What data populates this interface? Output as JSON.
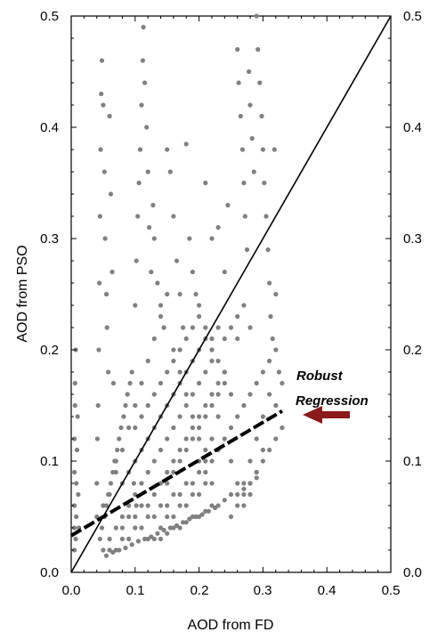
{
  "chart_data": {
    "type": "scatter",
    "xlabel": "AOD from FD",
    "ylabel": "AOD from PSO",
    "xlim": [
      0.0,
      0.5
    ],
    "ylim": [
      0.0,
      0.5
    ],
    "x_ticks": [
      "0.0",
      "0.1",
      "0.2",
      "0.3",
      "0.4",
      "0.5"
    ],
    "y_ticks": [
      "0.0",
      "0.1",
      "0.2",
      "0.3",
      "0.4",
      "0.5"
    ],
    "y_ticks_right": [
      "0.0",
      "0.1",
      "0.2",
      "0.3",
      "0.4",
      "0.5"
    ],
    "grid": false,
    "annotation": {
      "line1": "Robust",
      "line2": "Regression"
    },
    "colors": {
      "points": "#808080",
      "arrow": "#8b1a1a",
      "lines": "#000000"
    },
    "lines": [
      {
        "style": "solid",
        "x": [
          0.0,
          0.5
        ],
        "y": [
          0.0,
          0.5
        ]
      },
      {
        "style": "dashed",
        "x": [
          0.0,
          0.33
        ],
        "y": [
          0.033,
          0.145
        ]
      }
    ],
    "series": [
      {
        "points": [
          [
            0.005,
            0.02
          ],
          [
            0.005,
            0.04
          ],
          [
            0.005,
            0.06
          ],
          [
            0.005,
            0.09
          ],
          [
            0.005,
            0.12
          ],
          [
            0.006,
            0.15
          ],
          [
            0.006,
            0.17
          ],
          [
            0.007,
            0.2
          ],
          [
            0.007,
            0.03
          ],
          [
            0.008,
            0.05
          ],
          [
            0.008,
            0.08
          ],
          [
            0.009,
            0.11
          ],
          [
            0.01,
            0.14
          ],
          [
            0.011,
            0.07
          ],
          [
            0.012,
            0.04
          ],
          [
            0.04,
            0.05
          ],
          [
            0.04,
            0.08
          ],
          [
            0.041,
            0.12
          ],
          [
            0.042,
            0.15
          ],
          [
            0.043,
            0.2
          ],
          [
            0.044,
            0.26
          ],
          [
            0.045,
            0.32
          ],
          [
            0.046,
            0.38
          ],
          [
            0.047,
            0.43
          ],
          [
            0.048,
            0.46
          ],
          [
            0.05,
            0.42
          ],
          [
            0.052,
            0.36
          ],
          [
            0.053,
            0.3
          ],
          [
            0.055,
            0.25
          ],
          [
            0.056,
            0.22
          ],
          [
            0.058,
            0.18
          ],
          [
            0.06,
            0.41
          ],
          [
            0.062,
            0.34
          ],
          [
            0.064,
            0.27
          ],
          [
            0.066,
            0.17
          ],
          [
            0.1,
            0.24
          ],
          [
            0.102,
            0.28
          ],
          [
            0.104,
            0.32
          ],
          [
            0.106,
            0.35
          ],
          [
            0.108,
            0.38
          ],
          [
            0.11,
            0.42
          ],
          [
            0.112,
            0.46
          ],
          [
            0.113,
            0.49
          ],
          [
            0.115,
            0.44
          ],
          [
            0.118,
            0.4
          ],
          [
            0.12,
            0.36
          ],
          [
            0.122,
            0.31
          ],
          [
            0.125,
            0.27
          ],
          [
            0.128,
            0.33
          ],
          [
            0.13,
            0.3
          ],
          [
            0.135,
            0.26
          ],
          [
            0.14,
            0.24
          ],
          [
            0.145,
            0.22
          ],
          [
            0.15,
            0.38
          ],
          [
            0.155,
            0.36
          ],
          [
            0.16,
            0.32
          ],
          [
            0.165,
            0.28
          ],
          [
            0.17,
            0.25
          ],
          [
            0.175,
            0.22
          ],
          [
            0.18,
            0.385
          ],
          [
            0.185,
            0.3
          ],
          [
            0.19,
            0.27
          ],
          [
            0.195,
            0.25
          ],
          [
            0.2,
            0.24
          ],
          [
            0.21,
            0.35
          ],
          [
            0.22,
            0.3
          ],
          [
            0.23,
            0.31
          ],
          [
            0.24,
            0.27
          ],
          [
            0.245,
            0.33
          ],
          [
            0.26,
            0.47
          ],
          [
            0.262,
            0.44
          ],
          [
            0.265,
            0.41
          ],
          [
            0.268,
            0.38
          ],
          [
            0.27,
            0.35
          ],
          [
            0.272,
            0.32
          ],
          [
            0.275,
            0.29
          ],
          [
            0.278,
            0.45
          ],
          [
            0.28,
            0.42
          ],
          [
            0.283,
            0.39
          ],
          [
            0.286,
            0.36
          ],
          [
            0.29,
            0.5
          ],
          [
            0.292,
            0.47
          ],
          [
            0.295,
            0.44
          ],
          [
            0.298,
            0.41
          ],
          [
            0.3,
            0.38
          ],
          [
            0.302,
            0.35
          ],
          [
            0.305,
            0.32
          ],
          [
            0.308,
            0.29
          ],
          [
            0.31,
            0.26
          ],
          [
            0.312,
            0.23
          ],
          [
            0.315,
            0.21
          ],
          [
            0.318,
            0.38
          ],
          [
            0.32,
            0.25
          ],
          [
            0.325,
            0.18
          ],
          [
            0.33,
            0.17
          ],
          [
            0.05,
            0.02
          ],
          [
            0.06,
            0.03
          ],
          [
            0.07,
            0.04
          ],
          [
            0.08,
            0.05
          ],
          [
            0.09,
            0.06
          ],
          [
            0.1,
            0.07
          ],
          [
            0.11,
            0.08
          ],
          [
            0.12,
            0.09
          ],
          [
            0.13,
            0.1
          ],
          [
            0.14,
            0.11
          ],
          [
            0.15,
            0.12
          ],
          [
            0.16,
            0.13
          ],
          [
            0.17,
            0.14
          ],
          [
            0.18,
            0.15
          ],
          [
            0.19,
            0.16
          ],
          [
            0.2,
            0.17
          ],
          [
            0.21,
            0.18
          ],
          [
            0.22,
            0.19
          ],
          [
            0.05,
            0.06
          ],
          [
            0.06,
            0.07
          ],
          [
            0.07,
            0.09
          ],
          [
            0.08,
            0.11
          ],
          [
            0.09,
            0.13
          ],
          [
            0.1,
            0.15
          ],
          [
            0.11,
            0.17
          ],
          [
            0.12,
            0.19
          ],
          [
            0.13,
            0.21
          ],
          [
            0.14,
            0.23
          ],
          [
            0.15,
            0.25
          ],
          [
            0.16,
            0.2
          ],
          [
            0.17,
            0.18
          ],
          [
            0.18,
            0.16
          ],
          [
            0.19,
            0.14
          ],
          [
            0.2,
            0.12
          ],
          [
            0.21,
            0.1
          ],
          [
            0.22,
            0.08
          ],
          [
            0.06,
            0.02
          ],
          [
            0.07,
            0.02
          ],
          [
            0.08,
            0.03
          ],
          [
            0.09,
            0.03
          ],
          [
            0.1,
            0.04
          ],
          [
            0.11,
            0.04
          ],
          [
            0.12,
            0.05
          ],
          [
            0.13,
            0.05
          ],
          [
            0.14,
            0.06
          ],
          [
            0.15,
            0.06
          ],
          [
            0.16,
            0.07
          ],
          [
            0.17,
            0.07
          ],
          [
            0.18,
            0.08
          ],
          [
            0.19,
            0.08
          ],
          [
            0.2,
            0.09
          ],
          [
            0.21,
            0.09
          ],
          [
            0.22,
            0.1
          ],
          [
            0.23,
            0.11
          ],
          [
            0.07,
            0.1
          ],
          [
            0.08,
            0.08
          ],
          [
            0.09,
            0.09
          ],
          [
            0.1,
            0.1
          ],
          [
            0.11,
            0.11
          ],
          [
            0.12,
            0.12
          ],
          [
            0.13,
            0.13
          ],
          [
            0.14,
            0.14
          ],
          [
            0.15,
            0.15
          ],
          [
            0.16,
            0.16
          ],
          [
            0.17,
            0.17
          ],
          [
            0.18,
            0.18
          ],
          [
            0.19,
            0.19
          ],
          [
            0.2,
            0.2
          ],
          [
            0.21,
            0.21
          ],
          [
            0.22,
            0.2
          ],
          [
            0.23,
            0.19
          ],
          [
            0.24,
            0.18
          ],
          [
            0.08,
            0.04
          ],
          [
            0.09,
            0.05
          ],
          [
            0.1,
            0.05
          ],
          [
            0.11,
            0.06
          ],
          [
            0.12,
            0.06
          ],
          [
            0.13,
            0.07
          ],
          [
            0.14,
            0.08
          ],
          [
            0.15,
            0.08
          ],
          [
            0.16,
            0.09
          ],
          [
            0.17,
            0.1
          ],
          [
            0.18,
            0.11
          ],
          [
            0.19,
            0.12
          ],
          [
            0.2,
            0.13
          ],
          [
            0.21,
            0.14
          ],
          [
            0.22,
            0.15
          ],
          [
            0.23,
            0.16
          ],
          [
            0.24,
            0.17
          ],
          [
            0.25,
            0.16
          ],
          [
            0.25,
            0.05
          ],
          [
            0.26,
            0.06
          ],
          [
            0.27,
            0.07
          ],
          [
            0.28,
            0.08
          ],
          [
            0.29,
            0.09
          ],
          [
            0.3,
            0.1
          ],
          [
            0.31,
            0.11
          ],
          [
            0.32,
            0.12
          ],
          [
            0.25,
            0.13
          ],
          [
            0.26,
            0.14
          ],
          [
            0.27,
            0.15
          ],
          [
            0.28,
            0.16
          ],
          [
            0.29,
            0.17
          ],
          [
            0.3,
            0.18
          ],
          [
            0.31,
            0.19
          ],
          [
            0.32,
            0.2
          ],
          [
            0.26,
            0.21
          ],
          [
            0.28,
            0.22
          ],
          [
            0.27,
            0.08
          ],
          [
            0.28,
            0.1
          ],
          [
            0.29,
            0.12
          ],
          [
            0.3,
            0.14
          ],
          [
            0.31,
            0.16
          ],
          [
            0.32,
            0.15
          ],
          [
            0.33,
            0.13
          ],
          [
            0.3,
            0.11
          ],
          [
            0.29,
            0.09
          ],
          [
            0.28,
            0.07
          ],
          [
            0.27,
            0.06
          ],
          [
            0.26,
            0.08
          ],
          [
            0.25,
            0.1
          ],
          [
            0.24,
            0.12
          ],
          [
            0.23,
            0.14
          ],
          [
            0.22,
            0.12
          ],
          [
            0.21,
            0.11
          ],
          [
            0.2,
            0.1
          ],
          [
            0.045,
            0.03
          ],
          [
            0.048,
            0.04
          ],
          [
            0.052,
            0.05
          ],
          [
            0.055,
            0.06
          ],
          [
            0.058,
            0.07
          ],
          [
            0.062,
            0.08
          ],
          [
            0.065,
            0.09
          ],
          [
            0.068,
            0.1
          ],
          [
            0.072,
            0.11
          ],
          [
            0.075,
            0.12
          ],
          [
            0.078,
            0.13
          ],
          [
            0.082,
            0.14
          ],
          [
            0.085,
            0.15
          ],
          [
            0.088,
            0.16
          ],
          [
            0.092,
            0.17
          ],
          [
            0.095,
            0.18
          ],
          [
            0.098,
            0.08
          ],
          [
            0.102,
            0.06
          ],
          [
            0.14,
            0.04
          ],
          [
            0.15,
            0.05
          ],
          [
            0.16,
            0.05
          ],
          [
            0.17,
            0.06
          ],
          [
            0.18,
            0.06
          ],
          [
            0.19,
            0.07
          ],
          [
            0.2,
            0.07
          ],
          [
            0.21,
            0.08
          ],
          [
            0.15,
            0.09
          ],
          [
            0.16,
            0.1
          ],
          [
            0.17,
            0.11
          ],
          [
            0.18,
            0.12
          ],
          [
            0.19,
            0.13
          ],
          [
            0.2,
            0.14
          ],
          [
            0.21,
            0.15
          ],
          [
            0.22,
            0.16
          ],
          [
            0.23,
            0.17
          ],
          [
            0.24,
            0.18
          ],
          [
            0.1,
            0.13
          ],
          [
            0.11,
            0.14
          ],
          [
            0.12,
            0.15
          ],
          [
            0.13,
            0.16
          ],
          [
            0.14,
            0.17
          ],
          [
            0.15,
            0.18
          ],
          [
            0.16,
            0.19
          ],
          [
            0.17,
            0.2
          ],
          [
            0.18,
            0.21
          ],
          [
            0.19,
            0.22
          ],
          [
            0.2,
            0.23
          ],
          [
            0.21,
            0.22
          ],
          [
            0.22,
            0.21
          ],
          [
            0.23,
            0.22
          ],
          [
            0.24,
            0.21
          ],
          [
            0.25,
            0.22
          ],
          [
            0.26,
            0.23
          ],
          [
            0.27,
            0.24
          ],
          [
            0.12,
            0.03
          ],
          [
            0.13,
            0.03
          ],
          [
            0.14,
            0.03
          ],
          [
            0.15,
            0.035
          ],
          [
            0.16,
            0.04
          ],
          [
            0.17,
            0.04
          ],
          [
            0.18,
            0.045
          ],
          [
            0.19,
            0.05
          ],
          [
            0.2,
            0.05
          ],
          [
            0.21,
            0.055
          ],
          [
            0.22,
            0.06
          ],
          [
            0.23,
            0.06
          ],
          [
            0.24,
            0.065
          ],
          [
            0.25,
            0.07
          ],
          [
            0.26,
            0.07
          ],
          [
            0.27,
            0.075
          ],
          [
            0.28,
            0.08
          ],
          [
            0.29,
            0.085
          ],
          [
            0.055,
            0.015
          ],
          [
            0.065,
            0.018
          ],
          [
            0.075,
            0.02
          ],
          [
            0.085,
            0.022
          ],
          [
            0.095,
            0.025
          ],
          [
            0.105,
            0.028
          ],
          [
            0.115,
            0.03
          ],
          [
            0.125,
            0.032
          ],
          [
            0.135,
            0.035
          ],
          [
            0.145,
            0.038
          ],
          [
            0.155,
            0.04
          ],
          [
            0.165,
            0.042
          ],
          [
            0.175,
            0.045
          ],
          [
            0.185,
            0.048
          ],
          [
            0.195,
            0.05
          ],
          [
            0.205,
            0.052
          ],
          [
            0.215,
            0.055
          ],
          [
            0.225,
            0.058
          ]
        ]
      }
    ]
  }
}
